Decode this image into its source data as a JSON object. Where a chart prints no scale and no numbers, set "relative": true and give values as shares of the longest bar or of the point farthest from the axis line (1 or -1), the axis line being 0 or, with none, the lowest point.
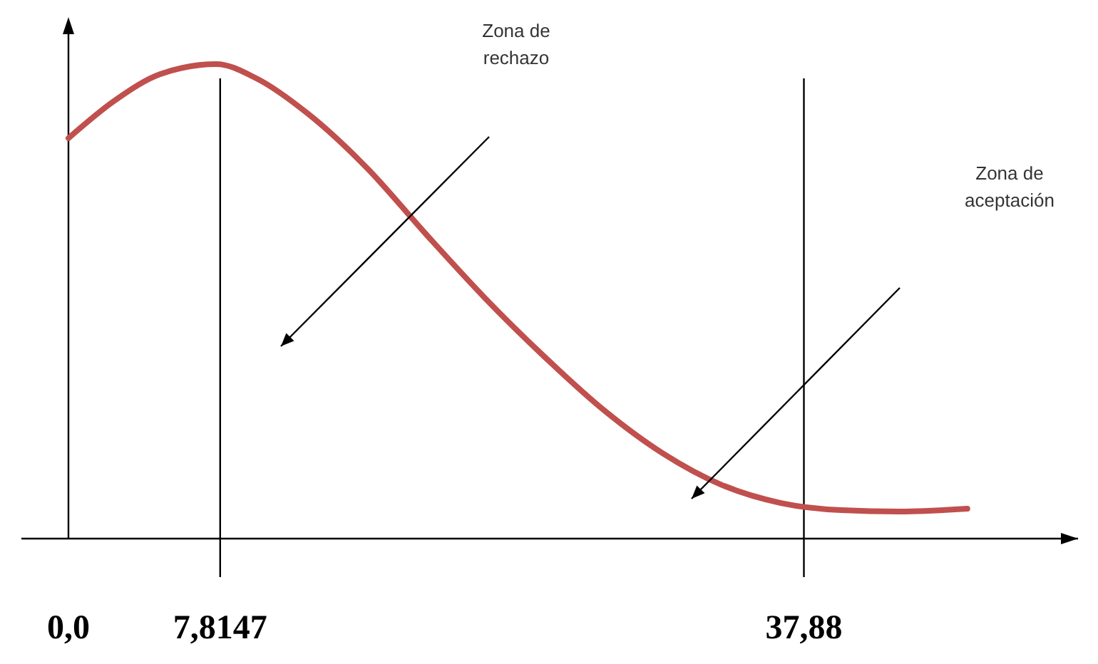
{
  "chart_data": {
    "type": "line",
    "relative": true,
    "x": [
      0,
      2.44,
      4.73,
      7.62,
      9.68,
      12.35,
      15.4,
      18.45,
      21.5,
      24.5,
      27.6,
      30.6,
      33.6,
      36.7,
      39.8,
      42.8,
      46.3
    ],
    "series": [
      {
        "color": "#c0504d",
        "values": [
          0.844,
          0.925,
          0.979,
          1,
          0.97,
          0.895,
          0.78,
          0.64,
          0.505,
          0.384,
          0.27,
          0.18,
          0.114,
          0.075,
          0.06,
          0.057,
          0.063
        ]
      }
    ],
    "xlim": [
      0,
      52
    ],
    "xticks": [
      {
        "value": 0,
        "label": "0,0"
      },
      {
        "value": 7.8147,
        "label": "7,8147"
      },
      {
        "value": 37.88,
        "label": "37,88"
      }
    ],
    "ref_lines": [
      {
        "axis": "x",
        "value": 7.8147,
        "color": "#000000"
      },
      {
        "axis": "x",
        "value": 37.88,
        "color": "#000000"
      }
    ],
    "annotations": [
      "Zona de rechazo",
      "Zona de aceptación"
    ]
  }
}
